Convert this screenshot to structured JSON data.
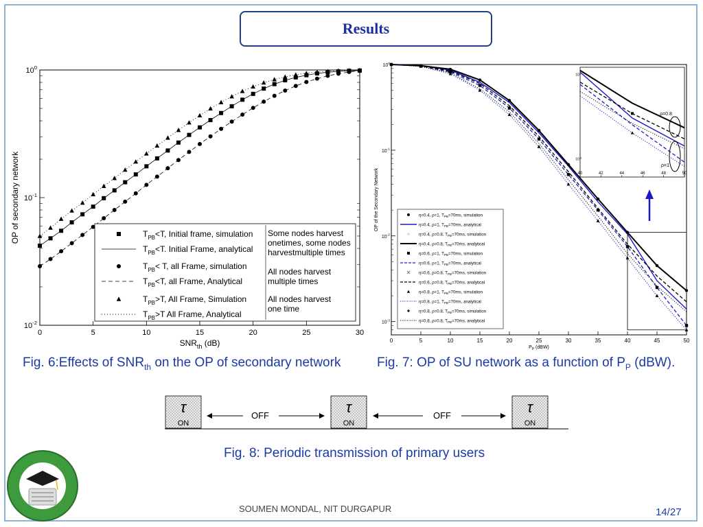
{
  "slide": {
    "title": "Results",
    "footer": "SOUMEN MONDAL, NIT DURGAPUR",
    "page": "14/27"
  },
  "fig6": {
    "caption_pre": "Fig. 6:Effects of SNR",
    "caption_sub": "th",
    "caption_post": " on the OP of secondary network",
    "ylabel": "OP of secondary network",
    "xlabel_main": "SNR",
    "xlabel_sub": "th",
    "xlabel_unit": " (dB)",
    "yticks": [
      {
        "base": "10",
        "exp": "0",
        "value": 1
      },
      {
        "base": "10",
        "exp": "-1",
        "value": 0.1
      },
      {
        "base": "10",
        "exp": "-2",
        "value": 0.01
      }
    ],
    "xticks": [
      "0",
      "5",
      "10",
      "15",
      "20",
      "25",
      "30"
    ],
    "legend": {
      "rows": [
        {
          "marker": "square",
          "T": "T",
          "sub": "PB",
          "text": "<T, Initial frame, simulation"
        },
        {
          "marker": "solid",
          "T": "T",
          "sub": "PB",
          "text": "<T. Initial Frame, analytical"
        },
        {
          "marker": "circle",
          "T": "T",
          "sub": "PB",
          "text": "< T, all Frame, simulation"
        },
        {
          "marker": "dashed",
          "T": "T",
          "sub": "PB",
          "text": "<T, all Frame, Analytical"
        },
        {
          "marker": "triangle",
          "T": "T",
          "sub": "PB",
          "text": ">T, All Frame, Simulation"
        },
        {
          "marker": "dotted",
          "T": "T",
          "sub": "PB",
          "text": ">T  All Frame, Analytical"
        }
      ],
      "notes": [
        [
          "Some nodes harvest",
          "onetimes, some nodes",
          "harvestmultiple times"
        ],
        [
          "All nodes harvest",
          "multiple times"
        ],
        [
          "All nodes harvest",
          "one time"
        ]
      ]
    }
  },
  "fig7": {
    "caption_pre": "Fig. 7: OP of SU network as a function of P",
    "caption_sub": "P",
    "caption_post": " (dBW).",
    "ylabel": "OP of the Secondary Network",
    "xlabel_main": "P",
    "xlabel_sub": "P",
    "xlabel_unit": " (dBW)",
    "xticks": [
      "0",
      "5",
      "10",
      "15",
      "20",
      "25",
      "30",
      "35",
      "40",
      "45",
      "50"
    ],
    "yticks": [
      {
        "base": "10",
        "exp": "0",
        "value": 1
      },
      {
        "base": "10",
        "exp": "-1",
        "value": 0.1
      },
      {
        "base": "10",
        "exp": "-2",
        "value": 0.01
      },
      {
        "base": "10",
        "exp": "-3",
        "value": 0.001
      }
    ],
    "inset_xticks": [
      "40",
      "42",
      "44",
      "46",
      "48",
      "50"
    ],
    "inset_yticks": [
      {
        "base": "10",
        "exp": "-2"
      },
      {
        "base": "10",
        "exp": "-3"
      }
    ],
    "inset_labels": [
      "ρ=0.8",
      "ρ=1"
    ],
    "arrow_color": "#1a1acc",
    "legend": [
      {
        "marker": "circle",
        "text": "η=0.4, ρ=1, T",
        "sub": "PB",
        "post": "=70ms, simulation"
      },
      {
        "marker": "blue-solid",
        "text": "η=0.4, ρ=1, T",
        "sub": "PB",
        "post": "=70ms, analytical"
      },
      {
        "marker": "star",
        "text": "η=0.4, ρ=0.8, T",
        "sub": "PB",
        "post": "=70ms, simulation"
      },
      {
        "marker": "black-thick",
        "text": "η=0.4, ρ=0.8, T",
        "sub": "PB",
        "post": "=70ms, analytical"
      },
      {
        "marker": "square",
        "text": "η=0.6, ρ=1, T",
        "sub": "PB",
        "post": "=70ms, simulation"
      },
      {
        "marker": "blue-dashed",
        "text": "η=0.6, ρ=1, T",
        "sub": "PB",
        "post": "=70ms, analytical"
      },
      {
        "marker": "cross",
        "text": "η=0.6, ρ=0.8, T",
        "sub": "PB",
        "post": "=70ms, simulation"
      },
      {
        "marker": "black-dashed",
        "text": "η=0.6, ρ=0.8, T",
        "sub": "PB",
        "post": "=70ms, analytical"
      },
      {
        "marker": "triangle",
        "text": "η=0.8, ρ=1, T",
        "sub": "PB",
        "post": "=70ms, simulation"
      },
      {
        "marker": "blue-dotted",
        "text": "η=0.8, ρ=1, T",
        "sub": "PB",
        "post": "=70ms, analytical"
      },
      {
        "marker": "plus",
        "text": "η=0.8, ρ=0.8, T",
        "sub": "PB",
        "post": "=70ms, simulation"
      },
      {
        "marker": "black-dotted",
        "text": "η=0.8, ρ=0.8, T",
        "sub": "PB",
        "post": "=70ms, analytical"
      }
    ]
  },
  "fig8": {
    "caption": "Fig. 8: Periodic transmission of  primary users",
    "tau": "τ",
    "on_label": "ON",
    "off_label": "OFF"
  },
  "chart_data": [
    {
      "type": "line",
      "ylabel": "OP of secondary network",
      "xlabel": "SNRth (dB)",
      "xlim": [
        0,
        30
      ],
      "ylim": [
        0.01,
        1
      ],
      "yscale": "log",
      "grid": false,
      "legend_position": "bottom-right",
      "x": [
        0,
        1,
        2,
        3,
        4,
        5,
        6,
        7,
        8,
        9,
        10,
        11,
        12,
        13,
        14,
        15,
        16,
        17,
        18,
        19,
        20,
        21,
        22,
        23,
        24,
        25,
        26,
        27,
        28,
        29,
        30
      ],
      "series": [
        {
          "name": "TPB<T, Initial frame, simulation",
          "style": "square",
          "values": [
            0.042,
            0.048,
            0.055,
            0.064,
            0.074,
            0.085,
            0.099,
            0.114,
            0.132,
            0.152,
            0.176,
            0.203,
            0.234,
            0.27,
            0.31,
            0.355,
            0.405,
            0.46,
            0.52,
            0.585,
            0.65,
            0.715,
            0.775,
            0.83,
            0.875,
            0.91,
            0.94,
            0.96,
            0.975,
            0.985,
            0.99
          ]
        },
        {
          "name": "TPB<T. Initial Frame, analytical",
          "style": "solid",
          "values": [
            0.042,
            0.048,
            0.055,
            0.064,
            0.074,
            0.085,
            0.099,
            0.114,
            0.132,
            0.152,
            0.176,
            0.203,
            0.234,
            0.27,
            0.31,
            0.355,
            0.405,
            0.46,
            0.52,
            0.585,
            0.65,
            0.715,
            0.775,
            0.83,
            0.875,
            0.91,
            0.94,
            0.96,
            0.975,
            0.985,
            0.99
          ]
        },
        {
          "name": "TPB< T, all Frame, simulation",
          "style": "circle",
          "values": [
            0.029,
            0.033,
            0.038,
            0.044,
            0.051,
            0.059,
            0.069,
            0.08,
            0.093,
            0.108,
            0.126,
            0.146,
            0.17,
            0.197,
            0.228,
            0.263,
            0.302,
            0.346,
            0.394,
            0.447,
            0.505,
            0.565,
            0.628,
            0.69,
            0.75,
            0.805,
            0.855,
            0.9,
            0.935,
            0.965,
            0.985
          ]
        },
        {
          "name": "TPB<T, all Frame, Analytical",
          "style": "dashed",
          "values": [
            0.029,
            0.033,
            0.038,
            0.044,
            0.051,
            0.059,
            0.069,
            0.08,
            0.093,
            0.108,
            0.126,
            0.146,
            0.17,
            0.197,
            0.228,
            0.263,
            0.302,
            0.346,
            0.394,
            0.447,
            0.505,
            0.565,
            0.628,
            0.69,
            0.75,
            0.805,
            0.855,
            0.9,
            0.935,
            0.965,
            0.985
          ]
        },
        {
          "name": "TPB>T, All Frame, Simulation",
          "style": "triangle",
          "values": [
            0.05,
            0.058,
            0.068,
            0.079,
            0.091,
            0.106,
            0.123,
            0.142,
            0.165,
            0.191,
            0.221,
            0.255,
            0.294,
            0.338,
            0.387,
            0.44,
            0.498,
            0.558,
            0.62,
            0.682,
            0.74,
            0.795,
            0.843,
            0.884,
            0.917,
            0.943,
            0.962,
            0.976,
            0.986,
            0.993,
            0.997
          ]
        },
        {
          "name": "TPB>T  All Frame, Analytical",
          "style": "dotted",
          "values": [
            0.05,
            0.058,
            0.068,
            0.079,
            0.091,
            0.106,
            0.123,
            0.142,
            0.165,
            0.191,
            0.221,
            0.255,
            0.294,
            0.338,
            0.387,
            0.44,
            0.498,
            0.558,
            0.62,
            0.682,
            0.74,
            0.795,
            0.843,
            0.884,
            0.917,
            0.943,
            0.962,
            0.976,
            0.986,
            0.993,
            0.997
          ]
        }
      ]
    },
    {
      "type": "line",
      "ylabel": "OP of the Secondary Network",
      "xlabel": "PP (dBW)",
      "xlim": [
        0,
        50
      ],
      "ylim": [
        0.0007,
        1
      ],
      "yscale": "log",
      "grid": false,
      "legend_position": "bottom-left",
      "x": [
        0,
        5,
        10,
        15,
        20,
        25,
        30,
        35,
        40,
        45,
        50
      ],
      "series": [
        {
          "name": "η=0.4, ρ=1, TPB=70ms, analytical",
          "color": "#1a1acc",
          "style": "solid",
          "values": [
            1.0,
            0.97,
            0.86,
            0.62,
            0.36,
            0.16,
            0.065,
            0.025,
            0.0105,
            0.003,
            0.0014
          ]
        },
        {
          "name": "η=0.4, ρ=0.8, TPB=70ms, analytical",
          "color": "#000000",
          "style": "thick",
          "values": [
            1.0,
            0.97,
            0.88,
            0.66,
            0.38,
            0.17,
            0.068,
            0.027,
            0.011,
            0.0045,
            0.0023
          ]
        },
        {
          "name": "η=0.6, ρ=1, TPB=70ms, analytical",
          "color": "#1a1acc",
          "style": "dashed",
          "values": [
            1.0,
            0.96,
            0.82,
            0.57,
            0.31,
            0.135,
            0.052,
            0.02,
            0.0075,
            0.0025,
            0.0009
          ]
        },
        {
          "name": "η=0.6, ρ=0.8, TPB=70ms, analytical",
          "color": "#000000",
          "style": "dashed",
          "values": [
            1.0,
            0.96,
            0.84,
            0.6,
            0.33,
            0.145,
            0.056,
            0.021,
            0.008,
            0.0034,
            0.0017
          ]
        },
        {
          "name": "η=0.8, ρ=1, TPB=70ms, analytical",
          "color": "#1a1acc",
          "style": "dotted",
          "values": [
            1.0,
            0.95,
            0.78,
            0.5,
            0.26,
            0.11,
            0.04,
            0.015,
            0.0055,
            0.002,
            0.0008
          ]
        },
        {
          "name": "η=0.8, ρ=0.8, TPB=70ms, analytical",
          "color": "#000000",
          "style": "dotted",
          "values": [
            1.0,
            0.95,
            0.8,
            0.52,
            0.28,
            0.12,
            0.045,
            0.017,
            0.0062,
            0.0026,
            0.0013
          ]
        }
      ]
    }
  ]
}
